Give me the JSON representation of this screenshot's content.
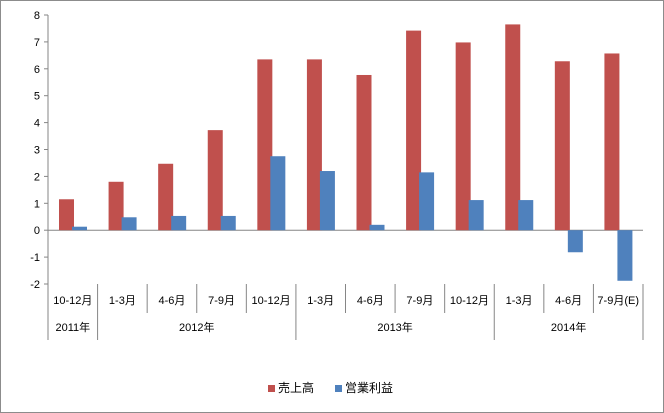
{
  "chart_data": {
    "type": "bar",
    "title": "",
    "xlabel": "",
    "ylabel": "",
    "ylim": [
      -2,
      8
    ],
    "yticks": [
      -2,
      -1,
      0,
      1,
      2,
      3,
      4,
      5,
      6,
      7,
      8
    ],
    "grid": false,
    "legend_position": "bottom",
    "categories": [
      "10-12月",
      "1-3月",
      "4-6月",
      "7-9月",
      "10-12月",
      "1-3月",
      "4-6月",
      "7-9月",
      "10-12月",
      "1-3月",
      "4-6月",
      "7-9月(E)"
    ],
    "category_groups": [
      {
        "label": "2011年",
        "span": 1
      },
      {
        "label": "2012年",
        "span": 4
      },
      {
        "label": "2013年",
        "span": 4
      },
      {
        "label": "2014年",
        "span": 3
      }
    ],
    "series": [
      {
        "name": "売上高",
        "color": "#c0504d",
        "values": [
          1.15,
          1.8,
          2.47,
          3.72,
          6.35,
          6.35,
          5.77,
          7.42,
          6.98,
          7.65,
          6.28,
          6.57
        ]
      },
      {
        "name": "営業利益",
        "color": "#4f81bd",
        "values": [
          0.13,
          0.48,
          0.53,
          0.53,
          2.75,
          2.2,
          0.2,
          2.15,
          1.12,
          1.12,
          -0.82,
          -1.88
        ]
      }
    ]
  }
}
